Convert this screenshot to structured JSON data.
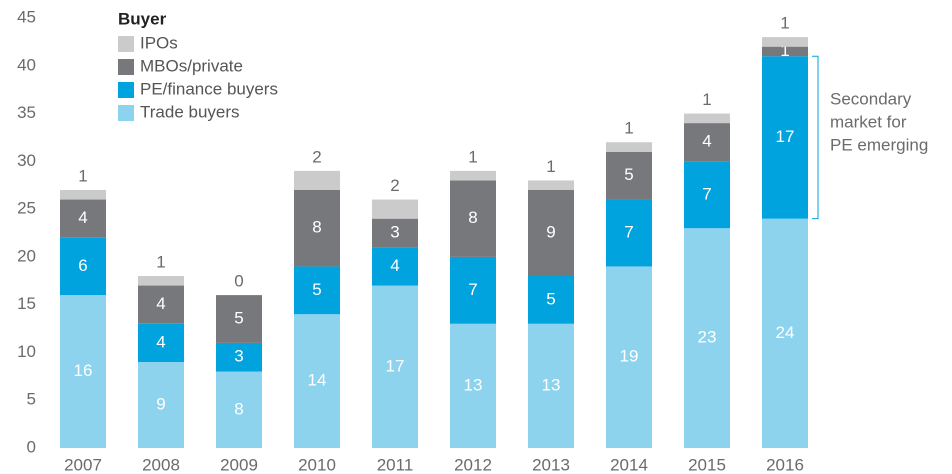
{
  "chart_data": {
    "type": "stacked_bar",
    "categories": [
      "2007",
      "2008",
      "2009",
      "2010",
      "2011",
      "2012",
      "2013",
      "2014",
      "2015",
      "2016"
    ],
    "legend_title": "Buyer",
    "series": [
      {
        "name": "Trade buyers",
        "color": "#8dd3ee",
        "values": [
          16,
          9,
          8,
          14,
          17,
          13,
          13,
          19,
          23,
          24
        ]
      },
      {
        "name": "PE/finance buyers",
        "color": "#00a3de",
        "values": [
          6,
          4,
          3,
          5,
          4,
          7,
          5,
          7,
          7,
          17
        ]
      },
      {
        "name": "MBOs/private",
        "color": "#77787b",
        "values": [
          4,
          4,
          5,
          8,
          3,
          8,
          9,
          5,
          4,
          1
        ]
      },
      {
        "name": "IPOs",
        "color": "#cbcbcb",
        "values": [
          1,
          1,
          0,
          2,
          2,
          1,
          1,
          1,
          1,
          1
        ]
      }
    ],
    "ylim": [
      0,
      45
    ],
    "yticks": [
      0,
      5,
      10,
      15,
      20,
      25,
      30,
      35,
      40,
      45
    ],
    "annotation": [
      "Secondary",
      "market for",
      "PE emerging"
    ],
    "grid": false
  }
}
